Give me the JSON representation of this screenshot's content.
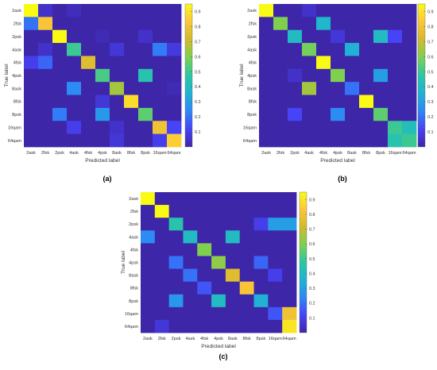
{
  "colormap": [
    "#3e26a8",
    "#4743f8",
    "#2e87f7",
    "#1fb3d3",
    "#2bc6a4",
    "#7bd151",
    "#d0ba2c",
    "#fcc63a",
    "#f9fb15"
  ],
  "chart_data": [
    {
      "type": "heatmap",
      "panel_label": "(a)",
      "xlabel": "Predicted label",
      "ylabel": "True label",
      "x_tick_labels": [
        "2ask",
        "2fsk",
        "2psk",
        "4ask",
        "4fsk",
        "4psk",
        "8ask",
        "8fsk",
        "8psk",
        "16qam",
        "64qam"
      ],
      "y_tick_labels": [
        "2ask",
        "2fsk",
        "2psk",
        "4ask",
        "4fsk",
        "4psk",
        "8ask",
        "8fsk",
        "8psk",
        "16qam",
        "64qam"
      ],
      "colorbar_ticks": [
        0.1,
        0.2,
        0.3,
        0.4,
        0.5,
        0.6,
        0.7,
        0.8,
        0.9
      ],
      "zlim": [
        0,
        0.95
      ],
      "values": [
        [
          0.95,
          0.05,
          0.0,
          0.03,
          0.0,
          0.0,
          0.0,
          0.0,
          0.0,
          0.0,
          0.0
        ],
        [
          0.2,
          0.82,
          0.0,
          0.0,
          0.0,
          0.0,
          0.0,
          0.0,
          0.0,
          0.0,
          0.0
        ],
        [
          0.0,
          0.0,
          0.95,
          0.0,
          0.0,
          0.02,
          0.0,
          0.0,
          0.05,
          0.0,
          0.0
        ],
        [
          0.0,
          0.05,
          0.0,
          0.5,
          0.0,
          0.0,
          0.07,
          0.0,
          0.0,
          0.22,
          0.08
        ],
        [
          0.1,
          0.18,
          0.0,
          0.0,
          0.75,
          0.0,
          0.0,
          0.0,
          0.0,
          0.0,
          0.0
        ],
        [
          0.0,
          0.0,
          0.0,
          0.0,
          0.0,
          0.52,
          0.0,
          0.0,
          0.45,
          0.0,
          0.0
        ],
        [
          0.0,
          0.0,
          0.0,
          0.25,
          0.0,
          0.0,
          0.65,
          0.0,
          0.0,
          0.0,
          0.02
        ],
        [
          0.0,
          0.0,
          0.0,
          0.0,
          0.0,
          0.07,
          0.0,
          0.88,
          0.0,
          0.0,
          0.0
        ],
        [
          0.0,
          0.0,
          0.22,
          0.0,
          0.0,
          0.28,
          0.0,
          0.0,
          0.55,
          0.0,
          0.0
        ],
        [
          0.0,
          0.0,
          0.0,
          0.1,
          0.0,
          0.0,
          0.05,
          0.0,
          0.0,
          0.8,
          0.12
        ],
        [
          0.0,
          0.0,
          0.0,
          0.0,
          0.0,
          0.0,
          0.07,
          0.0,
          0.0,
          0.1,
          0.85
        ]
      ]
    },
    {
      "type": "heatmap",
      "panel_label": "(b)",
      "xlabel": "Predicted label",
      "ylabel": "True label",
      "x_tick_labels": [
        "2ask",
        "2fsk",
        "2psk",
        "4ask",
        "4fsk",
        "4psk",
        "8ask",
        "8fsk",
        "8psk",
        "16qam",
        "64qam"
      ],
      "y_tick_labels": [
        "2ask",
        "2fsk",
        "2psk",
        "4ask",
        "4fsk",
        "4psk",
        "8ask",
        "8fsk",
        "8psk",
        "16qam",
        "64qam"
      ],
      "colorbar_ticks": [
        0.1,
        0.2,
        0.3,
        0.4,
        0.5,
        0.6,
        0.7,
        0.8,
        0.9
      ],
      "zlim": [
        0,
        0.95
      ],
      "values": [
        [
          0.95,
          0.0,
          0.0,
          0.05,
          0.0,
          0.0,
          0.0,
          0.0,
          0.0,
          0.0,
          0.0
        ],
        [
          0.0,
          0.6,
          0.0,
          0.0,
          0.38,
          0.0,
          0.0,
          0.0,
          0.0,
          0.0,
          0.0
        ],
        [
          0.0,
          0.0,
          0.4,
          0.0,
          0.0,
          0.07,
          0.0,
          0.0,
          0.4,
          0.12,
          0.0
        ],
        [
          0.0,
          0.0,
          0.0,
          0.58,
          0.0,
          0.0,
          0.35,
          0.0,
          0.0,
          0.0,
          0.0
        ],
        [
          0.0,
          0.0,
          0.0,
          0.0,
          0.95,
          0.0,
          0.0,
          0.0,
          0.0,
          0.0,
          0.0
        ],
        [
          0.0,
          0.0,
          0.05,
          0.0,
          0.0,
          0.6,
          0.0,
          0.0,
          0.3,
          0.0,
          0.0
        ],
        [
          0.0,
          0.0,
          0.0,
          0.65,
          0.0,
          0.0,
          0.2,
          0.0,
          0.0,
          0.0,
          0.0
        ],
        [
          0.0,
          0.0,
          0.0,
          0.0,
          0.0,
          0.0,
          0.0,
          0.95,
          0.0,
          0.0,
          0.0
        ],
        [
          0.0,
          0.0,
          0.12,
          0.0,
          0.0,
          0.25,
          0.0,
          0.0,
          0.55,
          0.0,
          0.0
        ],
        [
          0.0,
          0.0,
          0.0,
          0.0,
          0.0,
          0.0,
          0.0,
          0.0,
          0.0,
          0.5,
          0.42
        ],
        [
          0.0,
          0.0,
          0.0,
          0.0,
          0.0,
          0.0,
          0.0,
          0.0,
          0.0,
          0.45,
          0.5
        ]
      ]
    },
    {
      "type": "heatmap",
      "panel_label": "(c)",
      "xlabel": "Predicted label",
      "ylabel": "True label",
      "x_tick_labels": [
        "2ask",
        "2fsk",
        "2psk",
        "4ask",
        "4fsk",
        "4psk",
        "8ask",
        "8fsk",
        "8psk",
        "16qam",
        "64qam"
      ],
      "y_tick_labels": [
        "2ask",
        "2fsk",
        "2psk",
        "4ask",
        "4fsk",
        "4psk",
        "8ask",
        "8fsk",
        "8psk",
        "16qam",
        "64qam"
      ],
      "colorbar_ticks": [
        0.1,
        0.2,
        0.3,
        0.4,
        0.5,
        0.6,
        0.7,
        0.8,
        0.9
      ],
      "zlim": [
        0,
        0.95
      ],
      "values": [
        [
          0.95,
          0.0,
          0.0,
          0.0,
          0.0,
          0.0,
          0.0,
          0.0,
          0.0,
          0.0,
          0.0
        ],
        [
          0.0,
          0.95,
          0.0,
          0.0,
          0.0,
          0.0,
          0.0,
          0.0,
          0.0,
          0.0,
          0.0
        ],
        [
          0.0,
          0.0,
          0.45,
          0.0,
          0.0,
          0.0,
          0.0,
          0.0,
          0.1,
          0.3,
          0.3
        ],
        [
          0.25,
          0.0,
          0.0,
          0.4,
          0.0,
          0.0,
          0.4,
          0.0,
          0.0,
          0.0,
          0.0
        ],
        [
          0.0,
          0.0,
          0.0,
          0.0,
          0.6,
          0.0,
          0.0,
          0.0,
          0.0,
          0.0,
          0.0
        ],
        [
          0.0,
          0.0,
          0.2,
          0.0,
          0.0,
          0.62,
          0.0,
          0.0,
          0.18,
          0.0,
          0.0
        ],
        [
          0.0,
          0.0,
          0.0,
          0.2,
          0.0,
          0.0,
          0.75,
          0.0,
          0.0,
          0.1,
          0.0
        ],
        [
          0.0,
          0.0,
          0.0,
          0.0,
          0.15,
          0.0,
          0.0,
          0.82,
          0.0,
          0.0,
          0.0
        ],
        [
          0.0,
          0.0,
          0.28,
          0.0,
          0.0,
          0.4,
          0.0,
          0.0,
          0.35,
          0.0,
          0.0
        ],
        [
          0.0,
          0.0,
          0.0,
          0.0,
          0.0,
          0.0,
          0.0,
          0.0,
          0.0,
          0.15,
          0.8
        ],
        [
          0.0,
          0.07,
          0.0,
          0.0,
          0.0,
          0.0,
          0.0,
          0.0,
          0.0,
          0.0,
          0.9
        ]
      ]
    }
  ]
}
